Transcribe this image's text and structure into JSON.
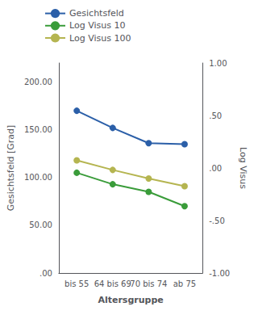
{
  "chart_data": {
    "type": "line",
    "categories": [
      "bis 55",
      "64 bis 69",
      "70 bis 74",
      "ab 75"
    ],
    "xlabel": "Altersgruppe",
    "ylabel": "Gesichtsfeld [Grad]",
    "y2label": "Log Visus",
    "series": [
      {
        "name": "Gesichtsfeld",
        "color": "#2b5fa8",
        "marker": "circle",
        "values": [
          170,
          152,
          136,
          135
        ]
      },
      {
        "name": "Log Visus 10",
        "color": "#3a9c3a",
        "marker": "circle",
        "values": [
          105,
          93,
          85,
          70
        ]
      },
      {
        "name": "Log Visus 100",
        "color": "#b5b550",
        "marker": "circle",
        "values": [
          118,
          108,
          99,
          91
        ]
      }
    ],
    "ylim": [
      0,
      220
    ],
    "yticks": [
      {
        "value": 0,
        "label": ".00"
      },
      {
        "value": 50,
        "label": "50.00"
      },
      {
        "value": 100,
        "label": "100.00"
      },
      {
        "value": 150,
        "label": "150.00"
      },
      {
        "value": 200,
        "label": "200.00"
      }
    ],
    "y2lim": [
      -1,
      1
    ],
    "y2ticks": [
      {
        "value": -1,
        "label": "-1.00"
      },
      {
        "value": -0.5,
        "label": "-.50"
      },
      {
        "value": 0,
        "label": ".00"
      },
      {
        "value": 0.5,
        "label": ".50"
      },
      {
        "value": 1,
        "label": "1.00"
      }
    ],
    "grid": false,
    "legend": "upper left"
  }
}
